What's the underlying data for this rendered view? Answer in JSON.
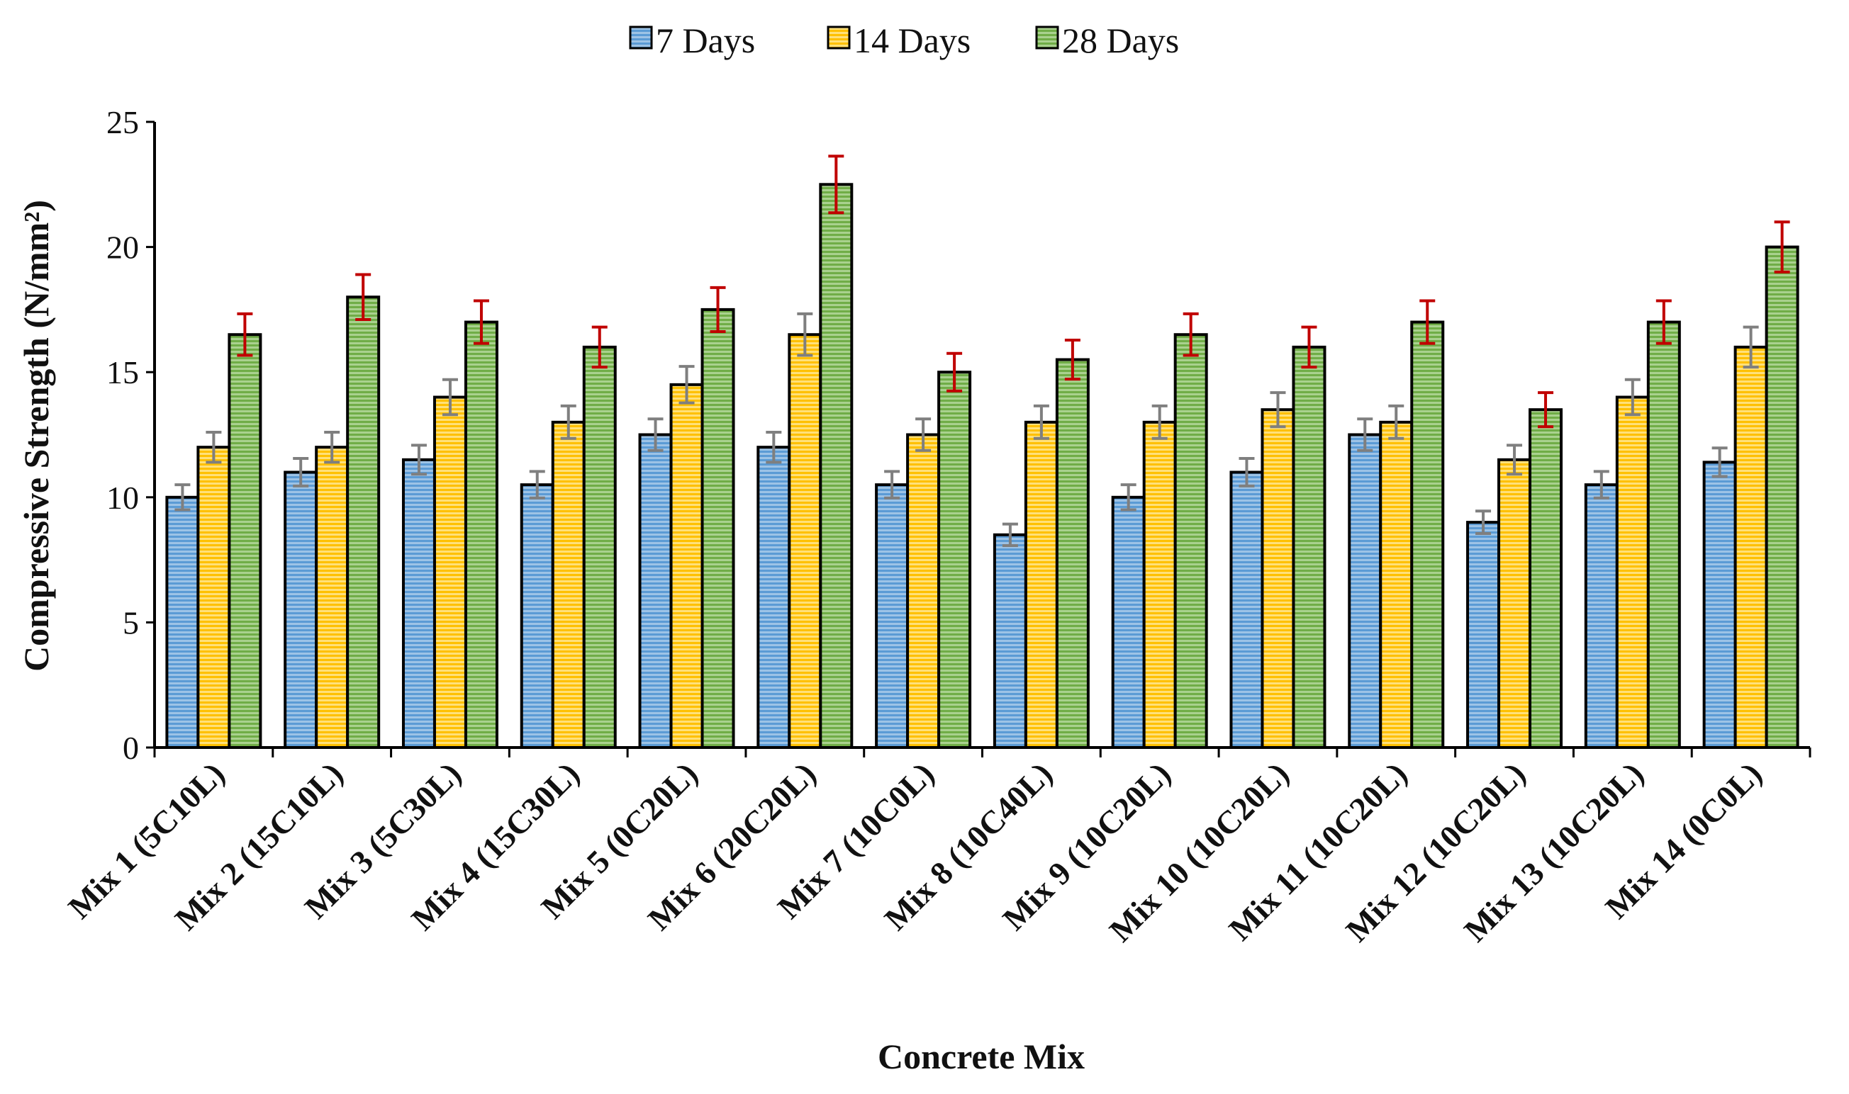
{
  "chart_data": {
    "type": "bar",
    "title": "",
    "xlabel": "Concrete Mix",
    "ylabel": "Compressive Strength (N/mm²)",
    "ylim": [
      0,
      25
    ],
    "yticks": [
      0,
      5,
      10,
      15,
      20,
      25
    ],
    "legend_position": "top-center",
    "categories": [
      "Mix 1 (5C10L)",
      "Mix 2 (15C10L)",
      "Mix 3 (5C30L)",
      "Mix 4 (15C30L)",
      "Mix 5 (0C20L)",
      "Mix 6 (20C20L)",
      "Mix 7 (10C0L)",
      "Mix 8 (10C40L)",
      "Mix 9 (10C20L)",
      "Mix 10 (10C20L)",
      "Mix 11 (10C20L)",
      "Mix 12 (10C20L)",
      "Mix 13 (10C20L)",
      "Mix 14 (0C0L)"
    ],
    "series": [
      {
        "name": "7 Days",
        "color": "#5b9bd5",
        "error_color": "#7f7f7f",
        "values": [
          10,
          11,
          11.5,
          10.5,
          12.5,
          12,
          10.5,
          8.5,
          10,
          11,
          12.5,
          9,
          10.5,
          11.4
        ],
        "errors": [
          0.5,
          0.55,
          0.58,
          0.53,
          0.63,
          0.6,
          0.53,
          0.43,
          0.5,
          0.55,
          0.63,
          0.45,
          0.53,
          0.57
        ]
      },
      {
        "name": "14 Days",
        "color": "#ffc000",
        "error_color": "#7f7f7f",
        "values": [
          12,
          12,
          14,
          13,
          14.5,
          16.5,
          12.5,
          13,
          13,
          13.5,
          13,
          11.5,
          14,
          16
        ],
        "errors": [
          0.6,
          0.6,
          0.7,
          0.65,
          0.73,
          0.83,
          0.63,
          0.65,
          0.65,
          0.68,
          0.65,
          0.58,
          0.7,
          0.8
        ]
      },
      {
        "name": "28 Days",
        "color": "#70ad47",
        "error_color": "#c00000",
        "values": [
          16.5,
          18,
          17,
          16,
          17.5,
          22.5,
          15,
          15.5,
          16.5,
          16,
          17,
          13.5,
          17,
          20
        ],
        "errors": [
          0.83,
          0.9,
          0.85,
          0.8,
          0.88,
          1.13,
          0.75,
          0.78,
          0.83,
          0.8,
          0.85,
          0.68,
          0.85,
          1.0
        ]
      }
    ]
  }
}
